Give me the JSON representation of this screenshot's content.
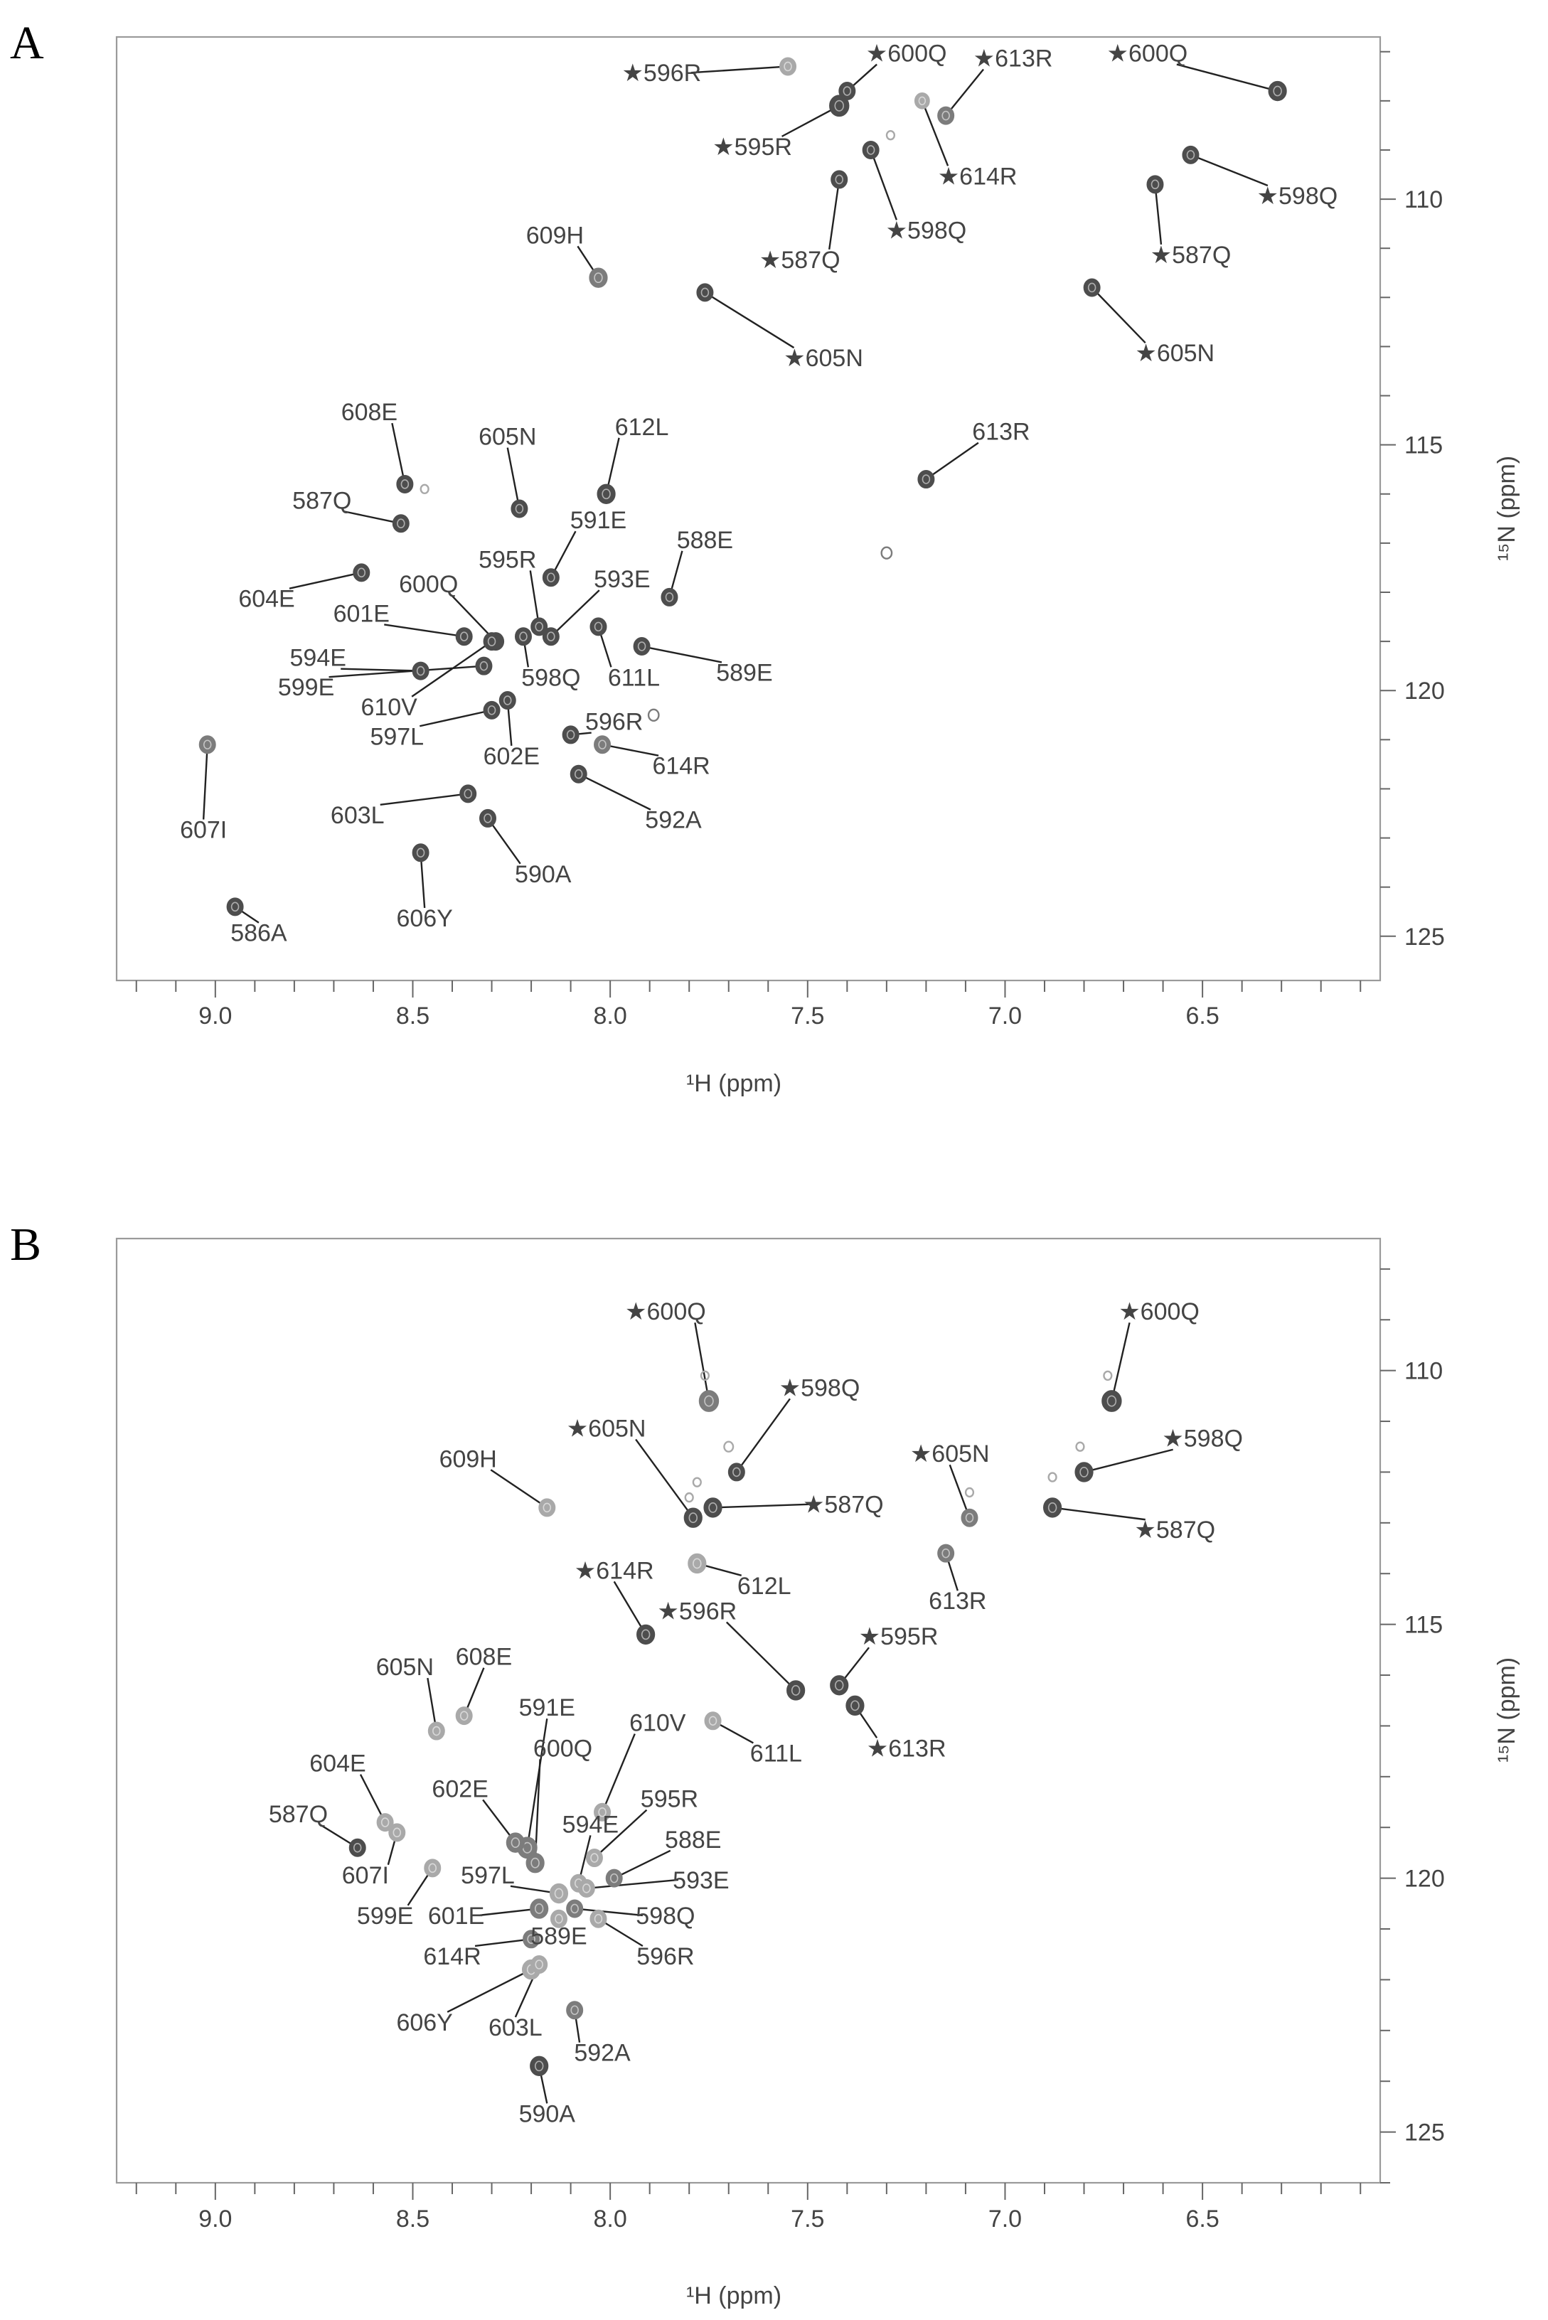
{
  "chart_data": [
    {
      "panel": "A",
      "type": "scatter",
      "xlabel": "¹H (ppm)",
      "ylabel": "¹⁵N (ppm)",
      "xlim": [
        9.25,
        6.05
      ],
      "ylim": [
        125.9,
        106.7
      ],
      "xticks": [
        "9.0",
        "8.5",
        "8.0",
        "7.5",
        "7.0",
        "6.5"
      ],
      "yticks": [
        "110",
        "115",
        "120",
        "125"
      ],
      "peaks": [
        {
          "label": "★596R",
          "h": 7.55,
          "n": 107.3,
          "lx": 7.87,
          "ly": 107.6,
          "shade": "light",
          "r": 1.0
        },
        {
          "label": "★595R",
          "h": 7.42,
          "n": 108.1,
          "lx": 7.64,
          "ly": 109.1,
          "shade": "dark",
          "r": 1.2
        },
        {
          "label": "★600Q",
          "h": 7.4,
          "n": 107.8,
          "lx": 7.25,
          "ly": 107.2,
          "shade": "dark",
          "r": 1.0
        },
        {
          "label": "★613R",
          "h": 7.15,
          "n": 108.3,
          "lx": 6.98,
          "ly": 107.3,
          "shade": "mid",
          "r": 1.0
        },
        {
          "label": "★614R",
          "h": 7.21,
          "n": 108.0,
          "lx": 7.07,
          "ly": 109.7,
          "shade": "light",
          "r": 0.9
        },
        {
          "label": "★598Q",
          "h": 7.34,
          "n": 109.0,
          "lx": 7.2,
          "ly": 110.8,
          "shade": "dark",
          "r": 1.0
        },
        {
          "label": "★587Q",
          "h": 7.42,
          "n": 109.6,
          "lx": 7.52,
          "ly": 111.4,
          "shade": "dark",
          "r": 1.0
        },
        {
          "label": "609H",
          "h": 8.03,
          "n": 111.6,
          "lx": 8.14,
          "ly": 110.9,
          "shade": "mid",
          "r": 1.1
        },
        {
          "label": "★605N",
          "h": 7.76,
          "n": 111.9,
          "lx": 7.46,
          "ly": 113.4,
          "shade": "dark",
          "r": 1.0
        },
        {
          "label": "★600Q",
          "h": 6.31,
          "n": 107.8,
          "lx": 6.64,
          "ly": 107.2,
          "shade": "dark",
          "r": 1.1
        },
        {
          "label": "★598Q",
          "h": 6.53,
          "n": 109.1,
          "lx": 6.26,
          "ly": 110.1,
          "shade": "dark",
          "r": 1.0
        },
        {
          "label": "★587Q",
          "h": 6.62,
          "n": 109.7,
          "lx": 6.53,
          "ly": 111.3,
          "shade": "dark",
          "r": 1.0
        },
        {
          "label": "★605N",
          "h": 6.78,
          "n": 111.8,
          "lx": 6.57,
          "ly": 113.3,
          "shade": "dark",
          "r": 1.0
        },
        {
          "label": "608E",
          "h": 8.52,
          "n": 115.8,
          "lx": 8.61,
          "ly": 114.5,
          "shade": "dark",
          "r": 1.0
        },
        {
          "label": "605N",
          "h": 8.23,
          "n": 116.3,
          "lx": 8.26,
          "ly": 115.0,
          "shade": "dark",
          "r": 1.0
        },
        {
          "label": "612L",
          "h": 8.01,
          "n": 116.0,
          "lx": 7.92,
          "ly": 114.8,
          "shade": "dark",
          "r": 1.1
        },
        {
          "label": "613R",
          "h": 7.2,
          "n": 115.7,
          "lx": 7.01,
          "ly": 114.9,
          "shade": "dark",
          "r": 1.0
        },
        {
          "label": "587Q",
          "h": 8.53,
          "n": 116.6,
          "lx": 8.73,
          "ly": 116.3,
          "shade": "dark",
          "r": 1.0
        },
        {
          "label": "591E",
          "h": 8.15,
          "n": 117.7,
          "lx": 8.03,
          "ly": 116.7,
          "shade": "dark",
          "r": 1.0
        },
        {
          "label": "588E",
          "h": 7.85,
          "n": 118.1,
          "lx": 7.76,
          "ly": 117.1,
          "shade": "dark",
          "r": 1.0
        },
        {
          "label": "604E",
          "h": 8.63,
          "n": 117.6,
          "lx": 8.87,
          "ly": 118.3,
          "shade": "dark",
          "r": 1.0
        },
        {
          "label": "595R",
          "h": 8.18,
          "n": 118.7,
          "lx": 8.26,
          "ly": 117.5,
          "shade": "dark",
          "r": 1.0
        },
        {
          "label": "593E",
          "h": 8.15,
          "n": 118.9,
          "lx": 7.97,
          "ly": 117.9,
          "shade": "dark",
          "r": 1.0
        },
        {
          "label": "600Q",
          "h": 8.29,
          "n": 119.0,
          "lx": 8.46,
          "ly": 118.0,
          "shade": "dark",
          "r": 1.0
        },
        {
          "label": "601E",
          "h": 8.37,
          "n": 118.9,
          "lx": 8.63,
          "ly": 118.6,
          "shade": "dark",
          "r": 1.0
        },
        {
          "label": "598Q",
          "h": 8.22,
          "n": 118.9,
          "lx": 8.15,
          "ly": 119.9,
          "shade": "dark",
          "r": 1.0
        },
        {
          "label": "611L",
          "h": 8.03,
          "n": 118.7,
          "lx": 7.94,
          "ly": 119.9,
          "shade": "dark",
          "r": 1.0
        },
        {
          "label": "589E",
          "h": 7.92,
          "n": 119.1,
          "lx": 7.66,
          "ly": 119.8,
          "shade": "dark",
          "r": 1.0
        },
        {
          "label": "594E",
          "h": 8.48,
          "n": 119.6,
          "lx": 8.74,
          "ly": 119.5,
          "shade": "dark",
          "r": 1.0
        },
        {
          "label": "599E",
          "h": 8.32,
          "n": 119.5,
          "lx": 8.77,
          "ly": 120.1,
          "shade": "dark",
          "r": 1.0
        },
        {
          "label": "610V",
          "h": 8.3,
          "n": 119.0,
          "lx": 8.56,
          "ly": 120.5,
          "shade": "dark",
          "r": 1.0
        },
        {
          "label": "597L",
          "h": 8.3,
          "n": 120.4,
          "lx": 8.54,
          "ly": 121.1,
          "shade": "dark",
          "r": 1.0
        },
        {
          "label": "602E",
          "h": 8.26,
          "n": 120.2,
          "lx": 8.25,
          "ly": 121.5,
          "shade": "dark",
          "r": 1.0
        },
        {
          "label": "596R",
          "h": 8.1,
          "n": 120.9,
          "lx": 7.99,
          "ly": 120.8,
          "shade": "dark",
          "r": 1.0
        },
        {
          "label": "614R",
          "h": 8.02,
          "n": 121.1,
          "lx": 7.82,
          "ly": 121.7,
          "shade": "mid",
          "r": 1.0
        },
        {
          "label": "592A",
          "h": 8.08,
          "n": 121.7,
          "lx": 7.84,
          "ly": 122.8,
          "shade": "dark",
          "r": 1.0
        },
        {
          "label": "607I",
          "h": 9.02,
          "n": 121.1,
          "lx": 9.03,
          "ly": 123.0,
          "shade": "mid",
          "r": 1.0
        },
        {
          "label": "603L",
          "h": 8.36,
          "n": 122.1,
          "lx": 8.64,
          "ly": 122.7,
          "shade": "dark",
          "r": 1.0
        },
        {
          "label": "590A",
          "h": 8.31,
          "n": 122.6,
          "lx": 8.17,
          "ly": 123.9,
          "shade": "dark",
          "r": 1.0
        },
        {
          "label": "606Y",
          "h": 8.48,
          "n": 123.3,
          "lx": 8.47,
          "ly": 124.8,
          "shade": "dark",
          "r": 1.0
        },
        {
          "label": "586A",
          "h": 8.95,
          "n": 124.4,
          "lx": 8.89,
          "ly": 125.1,
          "shade": "dark",
          "r": 1.0
        }
      ],
      "unlabeled_peaks": [
        {
          "h": 7.29,
          "n": 108.7,
          "shade": "light",
          "r": 0.6
        },
        {
          "h": 8.47,
          "n": 115.9,
          "shade": "light",
          "r": 0.6
        },
        {
          "h": 7.3,
          "n": 117.2,
          "shade": "mid",
          "r": 0.8
        },
        {
          "h": 7.89,
          "n": 120.5,
          "shade": "mid",
          "r": 0.8
        }
      ]
    },
    {
      "panel": "B",
      "type": "scatter",
      "xlabel": "¹H (ppm)",
      "ylabel": "¹⁵N (ppm)",
      "xlim": [
        9.25,
        6.05
      ],
      "ylim": [
        126.0,
        107.4
      ],
      "xticks": [
        "9.0",
        "8.5",
        "8.0",
        "7.5",
        "7.0",
        "6.5"
      ],
      "yticks": [
        "110",
        "115",
        "120",
        "125"
      ],
      "peaks": [
        {
          "label": "★600Q",
          "h": 7.75,
          "n": 110.6,
          "lx": 7.86,
          "ly": 109.0,
          "shade": "mid",
          "r": 1.2
        },
        {
          "label": "★598Q",
          "h": 7.68,
          "n": 112.0,
          "lx": 7.47,
          "ly": 110.5,
          "shade": "dark",
          "r": 1.0
        },
        {
          "label": "★605N",
          "h": 7.79,
          "n": 112.9,
          "lx": 8.01,
          "ly": 111.3,
          "shade": "dark",
          "r": 1.1
        },
        {
          "label": "609H",
          "h": 8.16,
          "n": 112.7,
          "lx": 8.36,
          "ly": 111.9,
          "shade": "light",
          "r": 1.0
        },
        {
          "label": "★587Q",
          "h": 7.74,
          "n": 112.7,
          "lx": 7.41,
          "ly": 112.8,
          "shade": "dark",
          "r": 1.1
        },
        {
          "label": "612L",
          "h": 7.78,
          "n": 113.8,
          "lx": 7.61,
          "ly": 114.4,
          "shade": "light",
          "r": 1.1
        },
        {
          "label": "★605N",
          "h": 7.09,
          "n": 112.9,
          "lx": 7.14,
          "ly": 111.8,
          "shade": "mid",
          "r": 1.0
        },
        {
          "label": "613R",
          "h": 7.15,
          "n": 113.6,
          "lx": 7.12,
          "ly": 114.7,
          "shade": "mid",
          "r": 1.0
        },
        {
          "label": "★600Q",
          "h": 6.73,
          "n": 110.6,
          "lx": 6.61,
          "ly": 109.0,
          "shade": "dark",
          "r": 1.2
        },
        {
          "label": "★598Q",
          "h": 6.8,
          "n": 112.0,
          "lx": 6.5,
          "ly": 111.5,
          "shade": "dark",
          "r": 1.1
        },
        {
          "label": "★587Q",
          "h": 6.88,
          "n": 112.7,
          "lx": 6.57,
          "ly": 113.3,
          "shade": "dark",
          "r": 1.1
        },
        {
          "label": "★614R",
          "h": 7.91,
          "n": 115.2,
          "lx": 7.99,
          "ly": 114.1,
          "shade": "dark",
          "r": 1.1
        },
        {
          "label": "★596R",
          "h": 7.53,
          "n": 116.3,
          "lx": 7.78,
          "ly": 114.9,
          "shade": "dark",
          "r": 1.1
        },
        {
          "label": "★595R",
          "h": 7.42,
          "n": 116.2,
          "lx": 7.27,
          "ly": 115.4,
          "shade": "dark",
          "r": 1.1
        },
        {
          "label": "★613R",
          "h": 7.38,
          "n": 116.6,
          "lx": 7.25,
          "ly": 117.6,
          "shade": "dark",
          "r": 1.1
        },
        {
          "label": "611L",
          "h": 7.74,
          "n": 116.9,
          "lx": 7.58,
          "ly": 117.7,
          "shade": "light",
          "r": 1.0
        },
        {
          "label": "605N",
          "h": 8.44,
          "n": 117.1,
          "lx": 8.52,
          "ly": 116.0,
          "shade": "light",
          "r": 1.0
        },
        {
          "label": "608E",
          "h": 8.37,
          "n": 116.8,
          "lx": 8.32,
          "ly": 115.8,
          "shade": "light",
          "r": 1.0
        },
        {
          "label": "591E",
          "h": 8.21,
          "n": 119.4,
          "lx": 8.16,
          "ly": 116.8,
          "shade": "mid",
          "r": 1.2
        },
        {
          "label": "610V",
          "h": 8.02,
          "n": 118.7,
          "lx": 7.88,
          "ly": 117.1,
          "shade": "light",
          "r": 1.0
        },
        {
          "label": "600Q",
          "h": 8.19,
          "n": 119.7,
          "lx": 8.12,
          "ly": 117.6,
          "shade": "mid",
          "r": 1.1
        },
        {
          "label": "604E",
          "h": 8.57,
          "n": 118.9,
          "lx": 8.69,
          "ly": 117.9,
          "shade": "light",
          "r": 1.0
        },
        {
          "label": "602E",
          "h": 8.24,
          "n": 119.3,
          "lx": 8.38,
          "ly": 118.4,
          "shade": "mid",
          "r": 1.1
        },
        {
          "label": "595R",
          "h": 8.04,
          "n": 119.6,
          "lx": 7.85,
          "ly": 118.6,
          "shade": "light",
          "r": 1.0
        },
        {
          "label": "594E",
          "h": 8.08,
          "n": 120.1,
          "lx": 8.05,
          "ly": 119.1,
          "shade": "light",
          "r": 1.0
        },
        {
          "label": "587Q",
          "h": 8.64,
          "n": 119.4,
          "lx": 8.79,
          "ly": 118.9,
          "shade": "dark",
          "r": 1.0
        },
        {
          "label": "588E",
          "h": 7.99,
          "n": 120.0,
          "lx": 7.79,
          "ly": 119.4,
          "shade": "mid",
          "r": 1.0
        },
        {
          "label": "597L",
          "h": 8.13,
          "n": 120.3,
          "lx": 8.31,
          "ly": 120.1,
          "shade": "light",
          "r": 1.1
        },
        {
          "label": "607I",
          "h": 8.54,
          "n": 119.1,
          "lx": 8.62,
          "ly": 120.1,
          "shade": "light",
          "r": 1.0
        },
        {
          "label": "593E",
          "h": 8.06,
          "n": 120.2,
          "lx": 7.77,
          "ly": 120.2,
          "shade": "light",
          "r": 1.0
        },
        {
          "label": "599E",
          "h": 8.45,
          "n": 119.8,
          "lx": 8.57,
          "ly": 120.9,
          "shade": "light",
          "r": 1.0
        },
        {
          "label": "601E",
          "h": 8.18,
          "n": 120.6,
          "lx": 8.39,
          "ly": 120.9,
          "shade": "mid",
          "r": 1.1
        },
        {
          "label": "598Q",
          "h": 8.09,
          "n": 120.6,
          "lx": 7.86,
          "ly": 120.9,
          "shade": "mid",
          "r": 1.0
        },
        {
          "label": "589E",
          "h": 8.13,
          "n": 120.8,
          "lx": 8.13,
          "ly": 121.3,
          "shade": "light",
          "r": 1.0
        },
        {
          "label": "596R",
          "h": 8.03,
          "n": 120.8,
          "lx": 7.86,
          "ly": 121.7,
          "shade": "light",
          "r": 1.0
        },
        {
          "label": "614R",
          "h": 8.2,
          "n": 121.2,
          "lx": 8.4,
          "ly": 121.7,
          "shade": "mid",
          "r": 1.0
        },
        {
          "label": "606Y",
          "h": 8.2,
          "n": 121.8,
          "lx": 8.47,
          "ly": 123.0,
          "shade": "light",
          "r": 1.1
        },
        {
          "label": "603L",
          "h": 8.18,
          "n": 121.7,
          "lx": 8.24,
          "ly": 123.1,
          "shade": "light",
          "r": 1.0
        },
        {
          "label": "592A",
          "h": 8.09,
          "n": 122.6,
          "lx": 8.02,
          "ly": 123.6,
          "shade": "mid",
          "r": 1.0
        },
        {
          "label": "590A",
          "h": 8.18,
          "n": 123.7,
          "lx": 8.16,
          "ly": 124.8,
          "shade": "dark",
          "r": 1.1
        }
      ],
      "unlabeled_peaks": [
        {
          "h": 7.76,
          "n": 110.1,
          "shade": "light",
          "r": 0.6
        },
        {
          "h": 7.7,
          "n": 111.5,
          "shade": "light",
          "r": 0.7
        },
        {
          "h": 7.78,
          "n": 112.2,
          "shade": "light",
          "r": 0.6
        },
        {
          "h": 7.8,
          "n": 112.5,
          "shade": "light",
          "r": 0.6
        },
        {
          "h": 7.09,
          "n": 112.4,
          "shade": "light",
          "r": 0.6
        },
        {
          "h": 6.74,
          "n": 110.1,
          "shade": "light",
          "r": 0.6
        },
        {
          "h": 6.81,
          "n": 111.5,
          "shade": "light",
          "r": 0.6
        },
        {
          "h": 6.88,
          "n": 112.1,
          "shade": "light",
          "r": 0.6
        }
      ]
    }
  ],
  "colors": {
    "dark": "#4d4d4d",
    "mid": "#7c7c7c",
    "light": "#a9a9a9",
    "frame": "#9a9a9a",
    "text": "#444444"
  }
}
